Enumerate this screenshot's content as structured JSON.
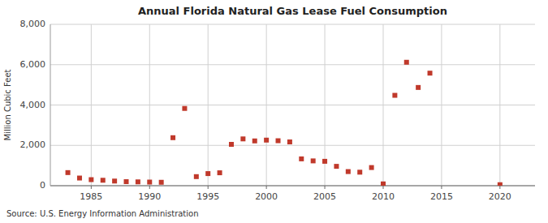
{
  "chart_data": {
    "type": "scatter",
    "title": "Annual Florida Natural Gas Lease Fuel Consumption",
    "y_label": "Million Cubic Feet",
    "source": "Source: U.S. Energy Information Administration",
    "color": "#c0392b",
    "marker": "square",
    "grid": true,
    "xlim": [
      1981.5,
      2023
    ],
    "ylim": [
      0,
      8000
    ],
    "yticks": [
      0,
      {
        "value": 2000,
        "label": "2,000"
      },
      {
        "value": 4000,
        "label": "4,000"
      },
      {
        "value": 6000,
        "label": "6,000"
      },
      {
        "value": 8000,
        "label": "8,000"
      }
    ],
    "xticks": [
      1985,
      1990,
      1995,
      2000,
      2005,
      2010,
      2015,
      2020
    ],
    "x": [
      1983,
      1984,
      1985,
      1986,
      1987,
      1988,
      1989,
      1990,
      1991,
      1992,
      1993,
      1994,
      1995,
      1996,
      1997,
      1998,
      1999,
      2000,
      2001,
      2002,
      2003,
      2004,
      2005,
      2006,
      2007,
      2008,
      2009,
      2010,
      2011,
      2012,
      2013,
      2014,
      2020
    ],
    "values": [
      650,
      380,
      300,
      270,
      230,
      200,
      190,
      180,
      170,
      2380,
      3830,
      450,
      600,
      640,
      2050,
      2320,
      2220,
      2260,
      2230,
      2170,
      1330,
      1230,
      1210,
      960,
      700,
      670,
      900,
      90,
      4480,
      6120,
      4870,
      5580,
      50
    ]
  }
}
